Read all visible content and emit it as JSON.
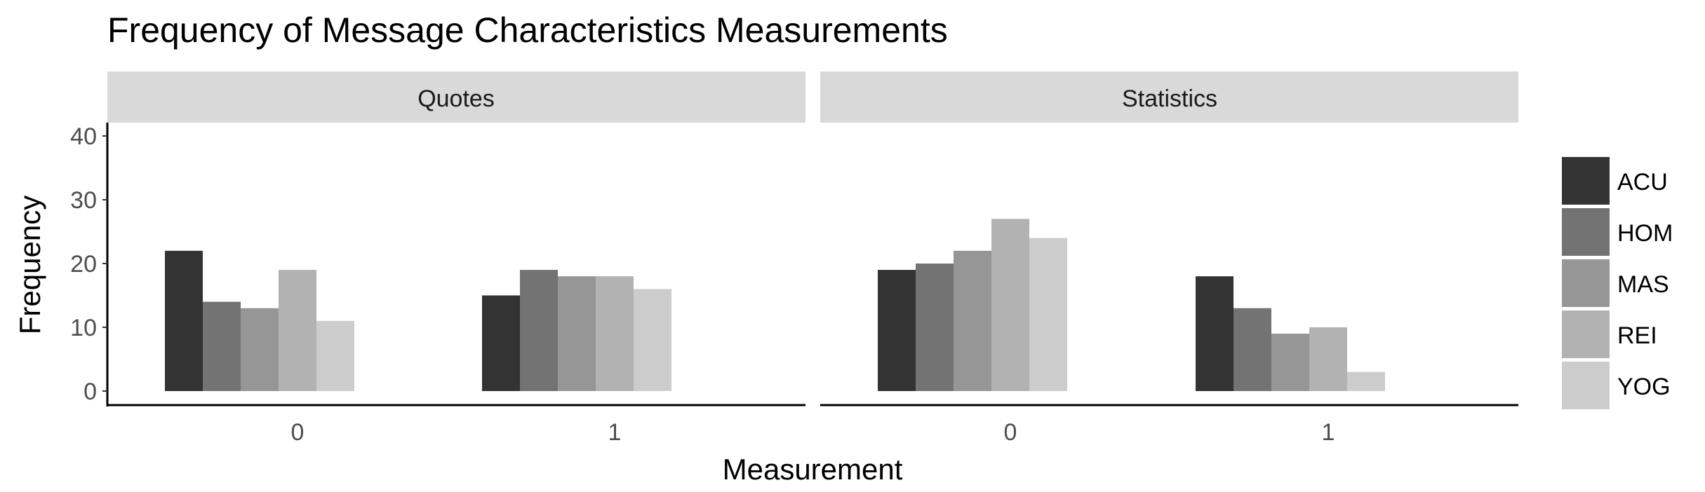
{
  "chart_data": {
    "type": "bar",
    "title": "Frequency of Message Characteristics Measurements",
    "xlabel": "Measurement",
    "ylabel": "Frequency",
    "ylim": [
      0,
      40
    ],
    "yticks": [
      "0",
      "10",
      "20",
      "30",
      "40"
    ],
    "categories": [
      "0",
      "1"
    ],
    "legend_placement": "right",
    "grid": false,
    "panels": [
      {
        "name": "Quotes",
        "series": [
          {
            "name": "ACU",
            "values": [
              22,
              15
            ]
          },
          {
            "name": "HOM",
            "values": [
              14,
              19
            ]
          },
          {
            "name": "MAS",
            "values": [
              13,
              18
            ]
          },
          {
            "name": "REI",
            "values": [
              19,
              18
            ]
          },
          {
            "name": "YOG",
            "values": [
              11,
              16
            ]
          }
        ]
      },
      {
        "name": "Statistics",
        "series": [
          {
            "name": "ACU",
            "values": [
              19,
              18
            ]
          },
          {
            "name": "HOM",
            "values": [
              20,
              13
            ]
          },
          {
            "name": "MAS",
            "values": [
              22,
              9
            ]
          },
          {
            "name": "REI",
            "values": [
              27,
              10
            ]
          },
          {
            "name": "YOG",
            "values": [
              24,
              3
            ]
          }
        ]
      }
    ],
    "colors": {
      "ACU": "#333333",
      "HOM": "#737373",
      "MAS": "#969696",
      "REI": "#b2b2b2",
      "YOG": "#cccccc",
      "strip": "#d9d9d9"
    }
  }
}
